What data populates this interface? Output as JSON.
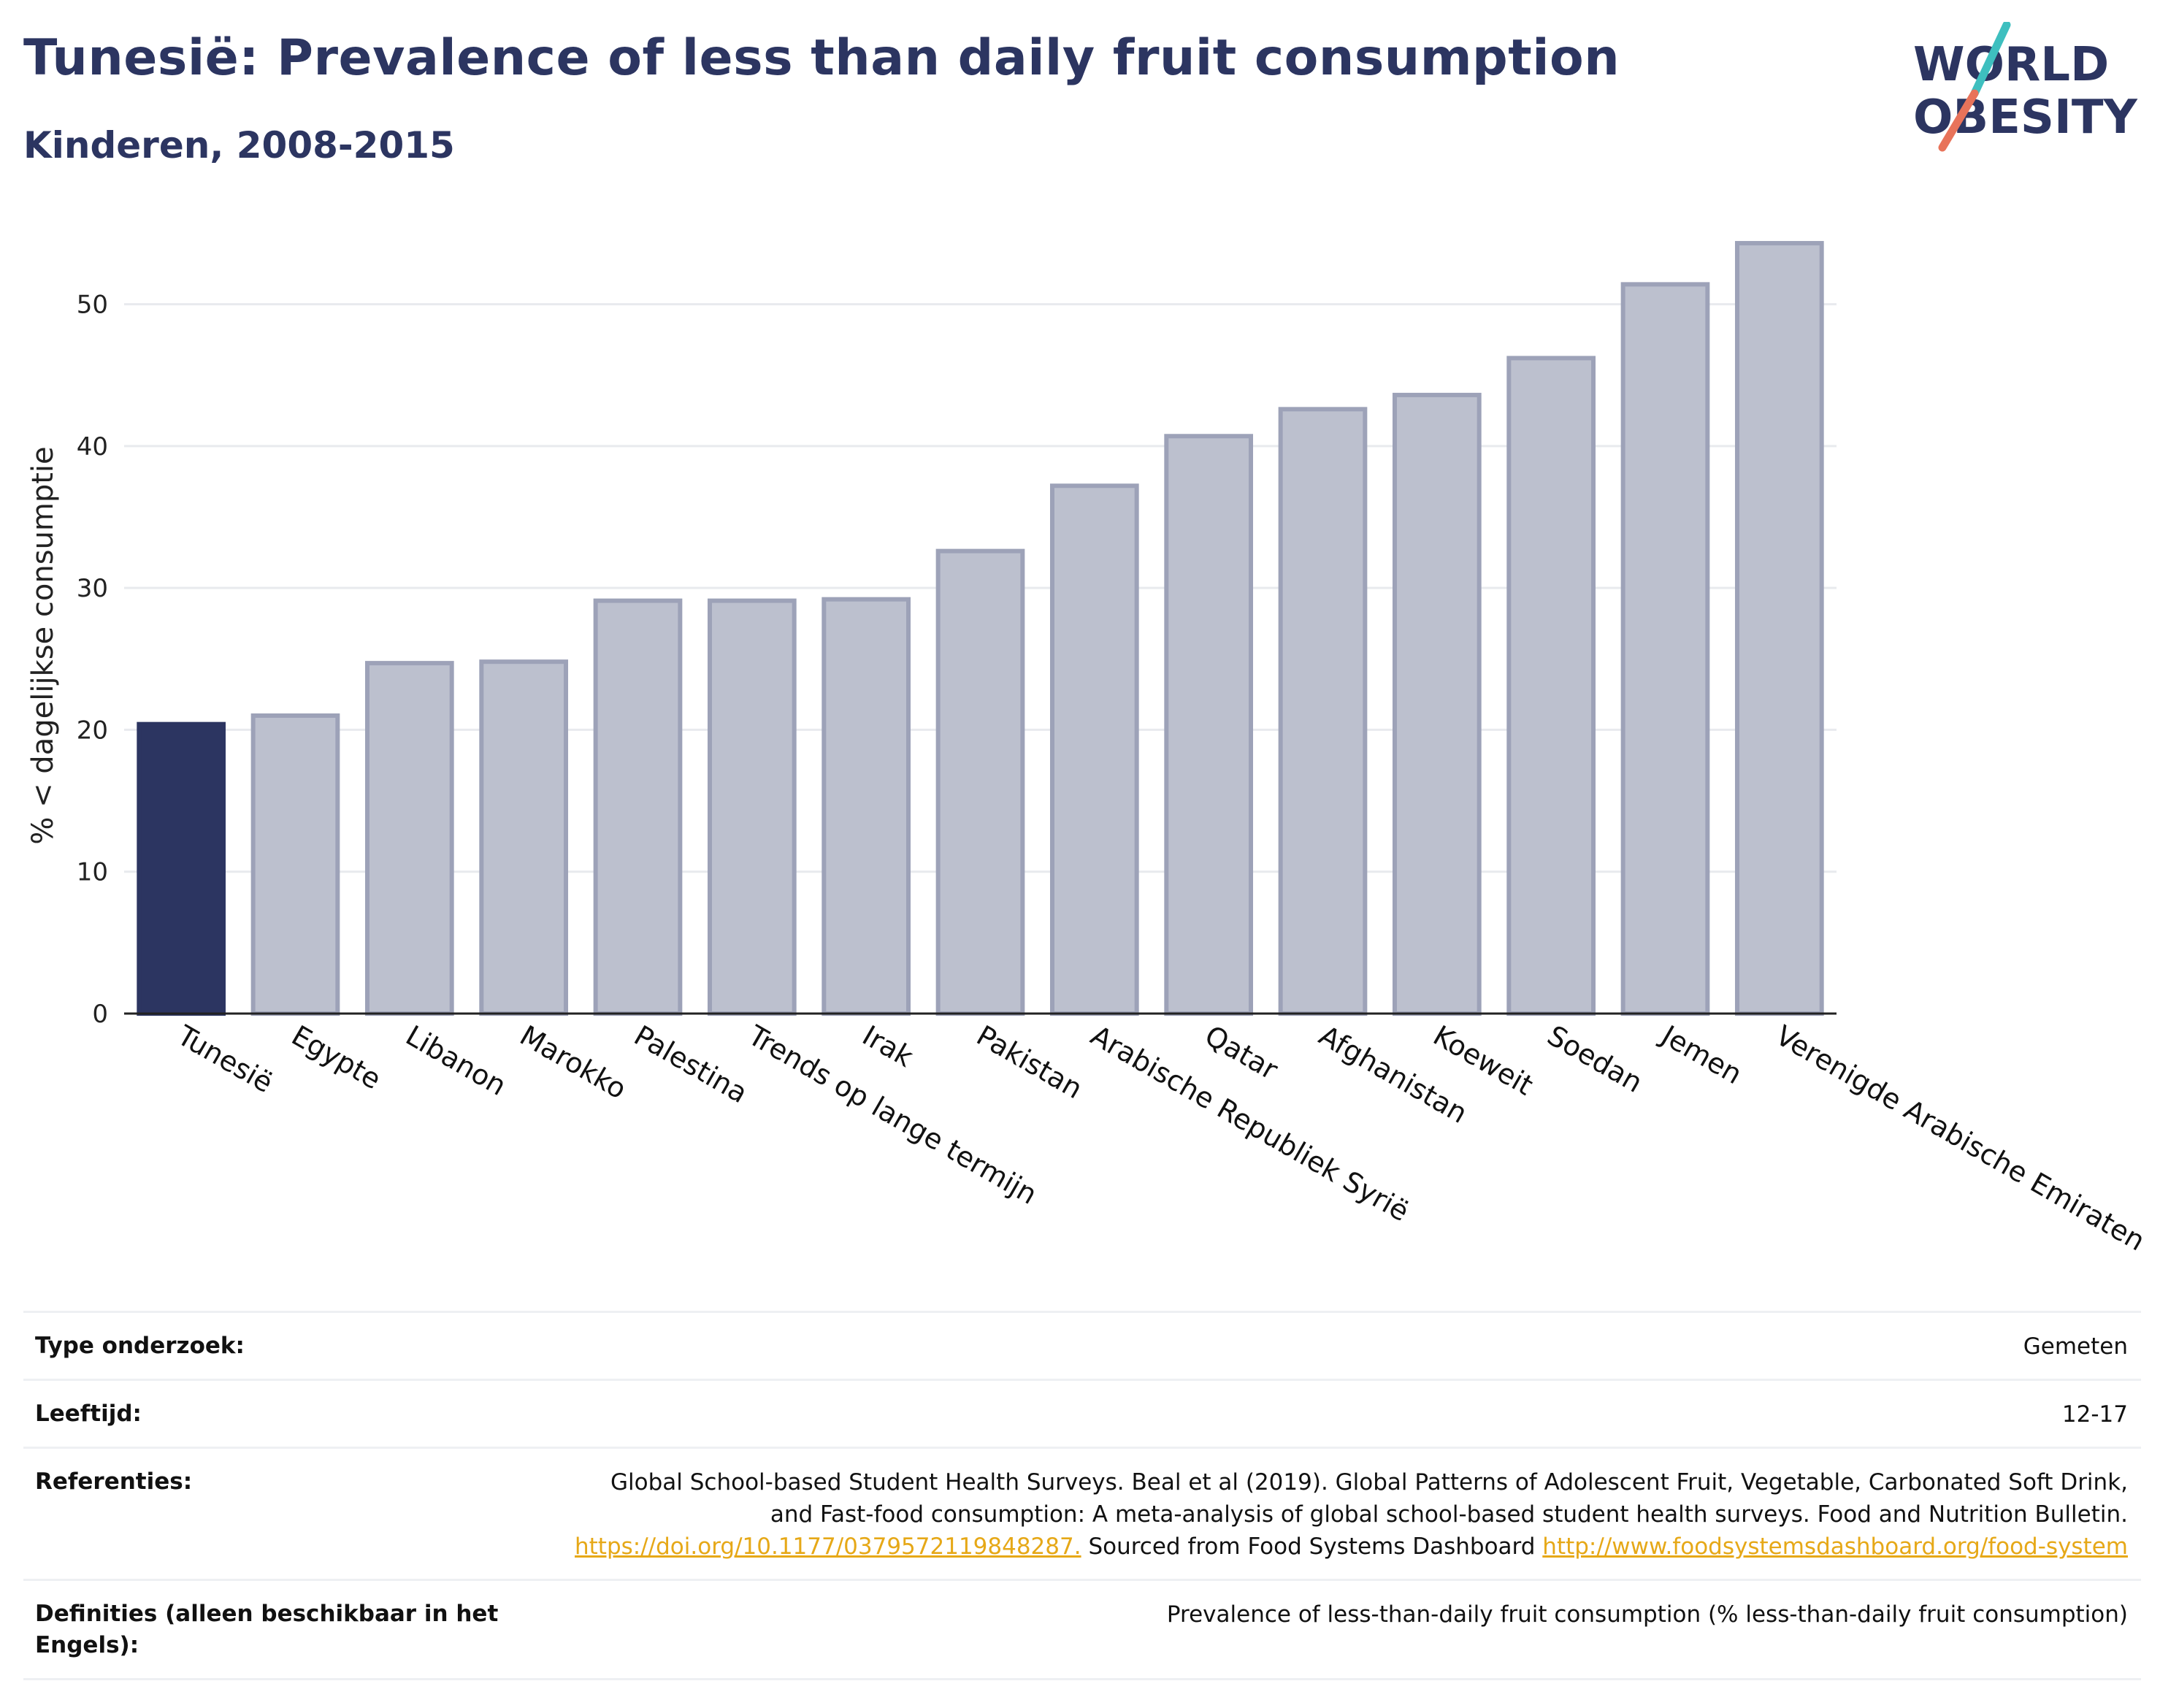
{
  "header": {
    "title": "Tunesië: Prevalence of less than daily fruit consumption",
    "subtitle": "Kinderen, 2008-2015"
  },
  "logo": {
    "line1": "WORLD",
    "line2": "OBESITY",
    "accent_teal": "#3ebfbf",
    "accent_coral": "#e8735a"
  },
  "colors": {
    "highlight": "#2c3561",
    "bar_fill": "#bcc0ce",
    "bar_stroke": "#9da2b8",
    "grid": "#e8eaee",
    "axis": "#222222"
  },
  "chart_data": {
    "type": "bar",
    "title": "",
    "ylabel": "% < dagelijkse consumptie",
    "ylim": [
      0,
      56
    ],
    "yticks": [
      0,
      10,
      20,
      30,
      40,
      50
    ],
    "grid": true,
    "highlight_category": "Tunesië",
    "categories": [
      "Tunesië",
      "Egypte",
      "Libanon",
      "Marokko",
      "Palestina",
      "Trends op lange termijn",
      "Irak",
      "Pakistan",
      "Arabische Republiek Syrië",
      "Qatar",
      "Afghanistan",
      "Koeweit",
      "Soedan",
      "Jemen",
      "Verenigde Arabische Emiraten"
    ],
    "values": [
      20.4,
      21.0,
      24.7,
      24.8,
      29.1,
      29.1,
      29.2,
      32.6,
      37.2,
      40.7,
      42.6,
      43.6,
      46.2,
      51.4,
      54.3
    ]
  },
  "meta": {
    "rows": [
      {
        "label": "Type onderzoek:",
        "value": "Gemeten"
      },
      {
        "label": "Leeftijd:",
        "value": "12-17"
      },
      {
        "label": "Referenties:",
        "text1": "Global School-based Student Health Surveys. Beal et al (2019). Global Patterns of Adolescent Fruit, Vegetable, Carbonated Soft Drink, and Fast-food consumption: A meta-analysis of global school-based student health surveys. Food and Nutrition Bulletin.",
        "link1": "https://doi.org/10.1177/0379572119848287.",
        "text2": "Sourced from Food Systems Dashboard",
        "link2": "http://www.foodsystemsdashboard.org/food-system"
      },
      {
        "label": "Definities (alleen beschikbaar in het Engels):",
        "value": "Prevalence of less-than-daily fruit consumption (% less-than-daily fruit consumption)"
      }
    ]
  }
}
